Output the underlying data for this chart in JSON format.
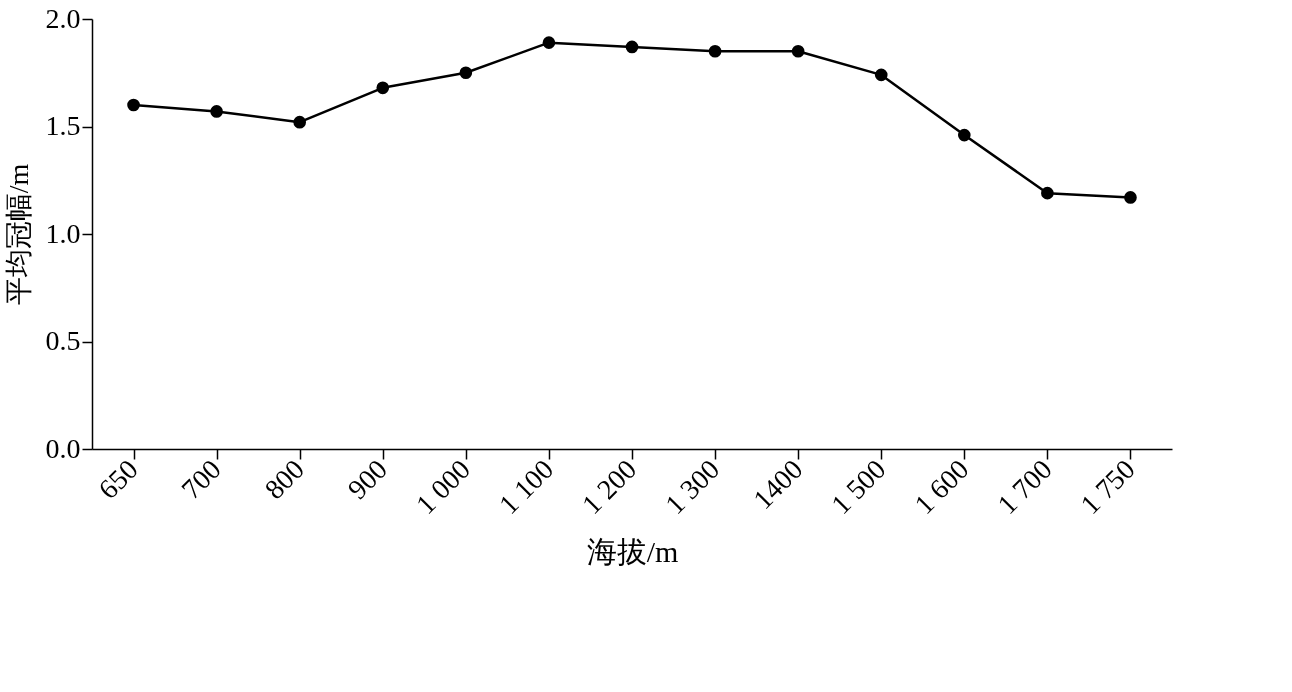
{
  "chart_data": {
    "type": "line",
    "xlabel": "海拔/m",
    "ylabel": "平均冠幅/m",
    "categories": [
      "650",
      "700",
      "800",
      "900",
      "1 000",
      "1 100",
      "1 200",
      "1 300",
      "1400",
      "1 500",
      "1 600",
      "1 700",
      "1 750"
    ],
    "series": [
      {
        "color": "#000000",
        "values": [
          1.6,
          1.57,
          1.52,
          1.68,
          1.75,
          1.89,
          1.87,
          1.85,
          1.85,
          1.74,
          1.46,
          1.19,
          1.17
        ]
      }
    ],
    "ylim": [
      0,
      2.0
    ],
    "yticks": [
      {
        "value": 0,
        "label": "0.0"
      },
      {
        "value": 0.5,
        "label": "0.5"
      },
      {
        "value": 1.0,
        "label": "1.0"
      },
      {
        "value": 1.5,
        "label": "1.5"
      },
      {
        "value": 2.0,
        "label": "2.0"
      }
    ],
    "grid": false,
    "marker": "circle",
    "line_style": "solid"
  }
}
